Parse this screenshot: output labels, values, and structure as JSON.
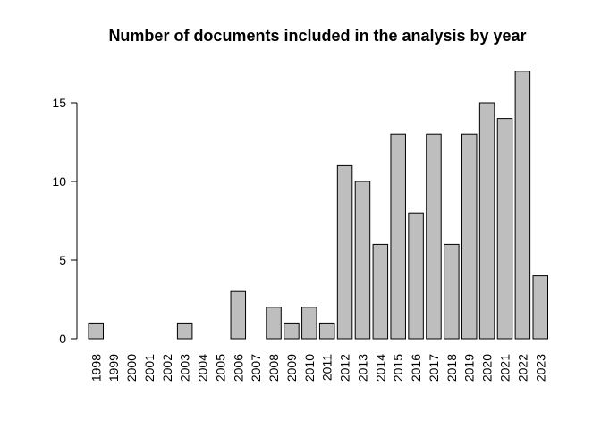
{
  "chart_data": {
    "type": "bar",
    "title": "Number of documents included in the analysis by year",
    "xlabel": "",
    "ylabel": "",
    "categories": [
      "1998",
      "1999",
      "2000",
      "2001",
      "2002",
      "2003",
      "2004",
      "2005",
      "2006",
      "2007",
      "2008",
      "2009",
      "2010",
      "2011",
      "2012",
      "2013",
      "2014",
      "2015",
      "2016",
      "2017",
      "2018",
      "2019",
      "2020",
      "2021",
      "2022",
      "2023"
    ],
    "values": [
      1,
      0,
      0,
      0,
      0,
      1,
      0,
      0,
      3,
      0,
      2,
      1,
      2,
      1,
      11,
      10,
      6,
      13,
      8,
      13,
      6,
      13,
      15,
      14,
      17,
      4
    ],
    "ylim": [
      0,
      17
    ],
    "yticks": [
      0,
      5,
      10,
      15
    ],
    "bar_color": "#bebebe",
    "bar_stroke": "#000000",
    "grid": false,
    "legend": "none"
  }
}
